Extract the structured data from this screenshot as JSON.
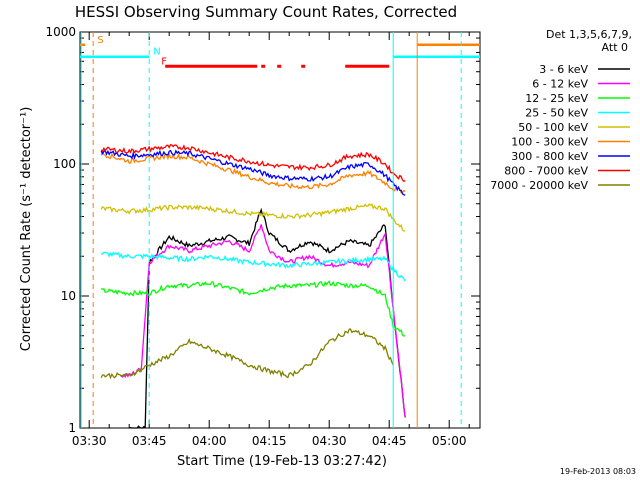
{
  "chart_data": {
    "type": "line",
    "title": "HESSI Observing Summary Count Rates, Corrected",
    "xlabel": "Start Time (19-Feb-13 03:27:42)",
    "ylabel": "Corrected Count Rate (s⁻¹ detector⁻¹)",
    "x_ticks": [
      "03:30",
      "03:45",
      "04:00",
      "04:15",
      "04:30",
      "04:45",
      "05:00"
    ],
    "y_ticks": [
      "1",
      "10",
      "100",
      "1000"
    ],
    "xlim": [
      "03:27:42",
      "05:07:42"
    ],
    "ylim": [
      1,
      1000
    ],
    "y_scale": "log",
    "footer": "19-Feb-2013 08:03",
    "legend": {
      "header": [
        "Det 1,3,5,6,7,9,",
        "Att 0"
      ],
      "position": "right"
    },
    "flags": [
      {
        "label": "S",
        "color": "#ff8000",
        "at": "03:31",
        "level": 800
      },
      {
        "label": "N",
        "color": "#00ffff",
        "at": "03:45",
        "level": 650
      },
      {
        "label": "F",
        "color": "#ff0000",
        "at": "03:47",
        "level": 550
      }
    ],
    "series": [
      {
        "name": "3 - 6 keV",
        "color": "#000000",
        "x": [
          "03:40",
          "03:44",
          "03:45",
          "03:50",
          "03:55",
          "04:00",
          "04:05",
          "04:10",
          "04:13",
          "04:15",
          "04:20",
          "04:25",
          "04:30",
          "04:35",
          "04:40",
          "04:44",
          "04:46",
          "04:49"
        ],
        "y": [
          1,
          1,
          18,
          28,
          24,
          26,
          28,
          25,
          45,
          30,
          22,
          26,
          22,
          26,
          24,
          35,
          8,
          1.2
        ]
      },
      {
        "name": "6 - 12 keV",
        "color": "#ff00ff",
        "x": [
          "03:38",
          "03:40",
          "03:43",
          "03:45",
          "03:50",
          "03:55",
          "04:00",
          "04:05",
          "04:10",
          "04:13",
          "04:15",
          "04:20",
          "04:25",
          "04:30",
          "04:35",
          "04:40",
          "04:44",
          "04:46",
          "04:49"
        ],
        "y": [
          2.5,
          2.5,
          2.8,
          18,
          24,
          22,
          24,
          26,
          22,
          35,
          22,
          18,
          20,
          17,
          18,
          17,
          30,
          8,
          1.2
        ]
      },
      {
        "name": "12 - 25 keV",
        "color": "#00ff00",
        "x": [
          "03:33",
          "03:40",
          "03:45",
          "03:50",
          "03:55",
          "04:00",
          "04:05",
          "04:10",
          "04:15",
          "04:20",
          "04:25",
          "04:30",
          "04:35",
          "04:40",
          "04:44",
          "04:46",
          "04:49"
        ],
        "y": [
          11,
          10.5,
          10.5,
          12,
          12,
          12.5,
          11.5,
          10.5,
          11.5,
          12,
          12,
          12.5,
          12,
          12,
          10,
          6,
          5
        ]
      },
      {
        "name": "25 - 50 keV",
        "color": "#00ffff",
        "x": [
          "03:33",
          "03:40",
          "03:45",
          "03:50",
          "03:55",
          "04:00",
          "04:05",
          "04:10",
          "04:15",
          "04:20",
          "04:25",
          "04:30",
          "04:35",
          "04:40",
          "04:44",
          "04:46",
          "04:49"
        ],
        "y": [
          21,
          20,
          20,
          19.5,
          19,
          20,
          19,
          18,
          17.5,
          17,
          17.5,
          18,
          18.5,
          19,
          19,
          16,
          13
        ]
      },
      {
        "name": "50 - 100 keV",
        "color": "#d0c000",
        "x": [
          "03:33",
          "03:40",
          "03:45",
          "03:50",
          "03:55",
          "04:00",
          "04:05",
          "04:10",
          "04:15",
          "04:20",
          "04:25",
          "04:30",
          "04:35",
          "04:40",
          "04:44",
          "04:46",
          "04:49"
        ],
        "y": [
          46,
          44,
          45,
          47,
          47,
          46,
          44,
          42,
          41,
          40,
          41,
          43,
          46,
          48,
          46,
          38,
          31
        ]
      },
      {
        "name": "100 - 300 keV",
        "color": "#ff8000",
        "x": [
          "03:33",
          "03:40",
          "03:45",
          "03:50",
          "03:55",
          "04:00",
          "04:05",
          "04:10",
          "04:15",
          "04:20",
          "04:25",
          "04:30",
          "04:35",
          "04:40",
          "04:44",
          "04:46",
          "04:49"
        ],
        "y": [
          120,
          105,
          110,
          115,
          112,
          100,
          90,
          80,
          72,
          68,
          67,
          70,
          82,
          85,
          72,
          65,
          62
        ]
      },
      {
        "name": "300 - 800 keV",
        "color": "#0000ff",
        "x": [
          "03:33",
          "03:40",
          "03:45",
          "03:50",
          "03:55",
          "04:00",
          "04:05",
          "04:10",
          "04:15",
          "04:20",
          "04:25",
          "04:30",
          "04:35",
          "04:40",
          "04:44",
          "04:46",
          "04:49"
        ],
        "y": [
          125,
          115,
          118,
          122,
          120,
          110,
          100,
          92,
          82,
          78,
          77,
          80,
          95,
          100,
          82,
          70,
          58
        ]
      },
      {
        "name": "800 - 7000 keV",
        "color": "#ff0000",
        "x": [
          "03:33",
          "03:40",
          "03:45",
          "03:50",
          "03:55",
          "04:00",
          "04:05",
          "04:10",
          "04:15",
          "04:20",
          "04:25",
          "04:30",
          "04:35",
          "04:40",
          "04:44",
          "04:46",
          "04:49"
        ],
        "y": [
          130,
          125,
          130,
          135,
          133,
          122,
          112,
          105,
          98,
          95,
          94,
          98,
          115,
          118,
          100,
          85,
          75
        ]
      },
      {
        "name": "7000 - 20000 keV",
        "color": "#808000",
        "x": [
          "03:33",
          "03:40",
          "03:45",
          "03:50",
          "03:55",
          "04:00",
          "04:05",
          "04:10",
          "04:15",
          "04:20",
          "04:25",
          "04:30",
          "04:35",
          "04:40",
          "04:44",
          "04:46"
        ],
        "y": [
          2.5,
          2.5,
          3,
          3.5,
          4.5,
          4,
          3.5,
          3,
          2.7,
          2.5,
          3,
          4.5,
          5.5,
          5,
          4,
          3
        ]
      }
    ]
  }
}
